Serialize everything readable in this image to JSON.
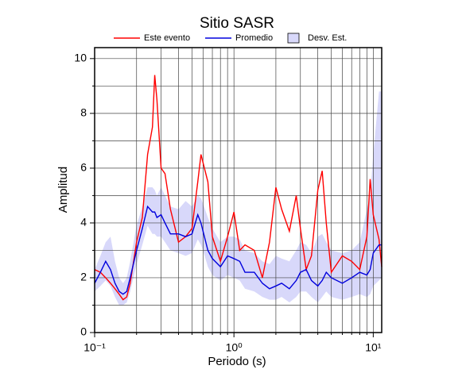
{
  "chart_data": {
    "type": "line",
    "title": "Sitio SASR",
    "x_label": "Periodo (s)",
    "y_label": "Amplitud",
    "log_x": true,
    "grid": true,
    "xlim": [
      0.1,
      11.5
    ],
    "ylim": [
      0,
      10.4
    ],
    "xticks": [
      {
        "value": 0.1,
        "label": "10⁻¹"
      },
      {
        "value": 1,
        "label": "10⁰"
      },
      {
        "value": 10,
        "label": "10¹"
      }
    ],
    "xminor": [
      0.2,
      0.3,
      0.4,
      0.5,
      0.6,
      0.7,
      0.8,
      0.9,
      2,
      3,
      4,
      5,
      6,
      7,
      8,
      9
    ],
    "yticks": [
      0,
      2,
      4,
      6,
      8,
      10
    ],
    "yminor": [
      1,
      3,
      5,
      7,
      9
    ],
    "x": [
      0.1,
      0.11,
      0.12,
      0.13,
      0.14,
      0.15,
      0.16,
      0.17,
      0.18,
      0.2,
      0.22,
      0.24,
      0.26,
      0.27,
      0.28,
      0.3,
      0.32,
      0.35,
      0.4,
      0.45,
      0.5,
      0.55,
      0.58,
      0.6,
      0.65,
      0.7,
      0.8,
      0.9,
      1.0,
      1.1,
      1.2,
      1.4,
      1.6,
      1.8,
      2.0,
      2.2,
      2.5,
      2.8,
      3.0,
      3.3,
      3.6,
      4.0,
      4.3,
      4.6,
      5.0,
      6,
      7,
      8,
      9,
      9.5,
      10,
      11,
      11.5
    ],
    "band": {
      "name": "Desv. Est.",
      "color": "#d8d8fa",
      "lower": [
        1.5,
        1.7,
        1.9,
        1.7,
        1.3,
        1.0,
        1.0,
        1.1,
        1.5,
        2.5,
        3.2,
        3.9,
        3.6,
        3.6,
        3.5,
        3.5,
        3.3,
        3.0,
        2.9,
        2.8,
        2.9,
        3.4,
        3.2,
        3.0,
        2.4,
        2.1,
        1.9,
        2.1,
        2.0,
        1.9,
        1.6,
        1.5,
        1.3,
        1.2,
        1.2,
        1.3,
        1.1,
        1.3,
        1.5,
        1.5,
        1.3,
        1.1,
        1.3,
        1.5,
        1.3,
        1.2,
        1.3,
        1.4,
        1.3,
        1.4,
        1.7,
        1.9,
        2.0
      ],
      "upper": [
        2.3,
        2.8,
        3.3,
        3.5,
        2.6,
        2.0,
        1.8,
        2.0,
        2.6,
        3.9,
        4.6,
        5.3,
        5.3,
        5.2,
        5.0,
        5.3,
        5.0,
        4.6,
        4.5,
        4.8,
        4.6,
        5.0,
        4.9,
        4.7,
        4.2,
        3.8,
        3.3,
        3.5,
        3.5,
        3.4,
        3.0,
        2.9,
        2.6,
        2.5,
        2.8,
        2.7,
        2.6,
        3.0,
        3.3,
        3.2,
        2.9,
        3.5,
        3.6,
        3.3,
        3.0,
        2.9,
        3.0,
        3.3,
        4.5,
        5.0,
        6.5,
        8.8,
        8.8
      ]
    },
    "series": [
      {
        "name": "Este evento",
        "color": "#ff0000",
        "values": [
          2.3,
          2.2,
          2.0,
          1.8,
          1.6,
          1.4,
          1.2,
          1.3,
          1.8,
          3.3,
          4.2,
          6.5,
          7.5,
          9.4,
          8.5,
          6.0,
          5.8,
          4.5,
          3.3,
          3.5,
          3.8,
          5.5,
          6.5,
          6.2,
          5.5,
          3.5,
          2.6,
          3.5,
          4.4,
          3.0,
          3.2,
          3.0,
          2.0,
          3.3,
          5.3,
          4.5,
          3.7,
          5.0,
          3.8,
          2.3,
          2.8,
          5.2,
          5.9,
          4.0,
          2.2,
          2.8,
          2.6,
          2.3,
          3.5,
          5.6,
          4.3,
          3.4,
          2.4
        ]
      },
      {
        "name": "Promedio",
        "color": "#0000dd",
        "values": [
          1.8,
          2.2,
          2.6,
          2.3,
          1.8,
          1.5,
          1.4,
          1.5,
          2.0,
          3.0,
          3.8,
          4.6,
          4.4,
          4.4,
          4.2,
          4.3,
          4.0,
          3.6,
          3.6,
          3.5,
          3.6,
          4.3,
          4.0,
          3.7,
          3.0,
          2.7,
          2.4,
          2.8,
          2.7,
          2.6,
          2.2,
          2.2,
          1.8,
          1.6,
          1.7,
          1.8,
          1.6,
          1.9,
          2.2,
          2.3,
          1.9,
          1.7,
          1.9,
          2.2,
          2.0,
          1.8,
          2.0,
          2.2,
          2.1,
          2.3,
          2.9,
          3.2,
          3.2
        ]
      }
    ]
  }
}
